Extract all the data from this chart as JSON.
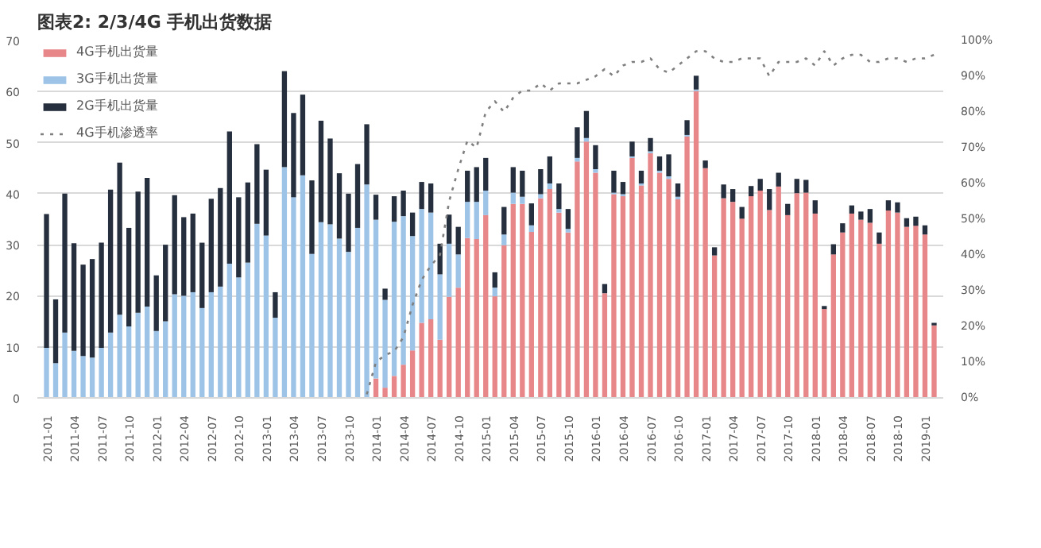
{
  "chart_data": {
    "type": "bar",
    "title": "图表2:  2/3/4G 手机出货数据",
    "stacked": true,
    "grid": "y",
    "legend": "top left",
    "categories": [
      "2011-01",
      null,
      null,
      "2011-04",
      null,
      null,
      "2011-07",
      null,
      null,
      "2011-10",
      null,
      null,
      "2012-01",
      null,
      null,
      "2012-04",
      null,
      null,
      "2012-07",
      null,
      null,
      "2012-10",
      null,
      null,
      "2013-01",
      null,
      null,
      "2013-04",
      null,
      null,
      "2013-07",
      null,
      null,
      "2013-10",
      null,
      null,
      "2014-01",
      null,
      null,
      "2014-04",
      null,
      null,
      "2014-07",
      null,
      null,
      "2014-10",
      null,
      null,
      "2015-01",
      null,
      null,
      "2015-04",
      null,
      null,
      "2015-07",
      null,
      null,
      "2015-10",
      null,
      null,
      "2016-01",
      null,
      null,
      "2016-04",
      null,
      null,
      "2016-07",
      null,
      null,
      "2016-10",
      null,
      null,
      "2017-01",
      null,
      null,
      "2017-04",
      null,
      null,
      "2017-07",
      null,
      null,
      "2017-10",
      null,
      null,
      "2018-01",
      null,
      null,
      "2018-04",
      null,
      null,
      "2018-07",
      null,
      null,
      "2018-10",
      null,
      null,
      "2019-01",
      null
    ],
    "ylim": [
      0,
      70
    ],
    "yticks": [
      0,
      10,
      20,
      30,
      40,
      50,
      60,
      70
    ],
    "y2lim": [
      0,
      100
    ],
    "y2ticks": [
      {
        "value": 0,
        "label": "0%"
      },
      {
        "value": 10,
        "label": "10%"
      },
      {
        "value": 20,
        "label": "20%"
      },
      {
        "value": 30,
        "label": "30%"
      },
      {
        "value": 40,
        "label": "40%"
      },
      {
        "value": 50,
        "label": "50%"
      },
      {
        "value": 60,
        "label": "60%"
      },
      {
        "value": 70,
        "label": "70%"
      },
      {
        "value": 80,
        "label": "80%"
      },
      {
        "value": 90,
        "label": "90%"
      },
      {
        "value": 100,
        "label": "100%"
      }
    ],
    "series": [
      {
        "name": "4G手机出货量",
        "color": "#e8878a",
        "values": [
          null,
          null,
          null,
          null,
          null,
          null,
          null,
          null,
          null,
          null,
          null,
          null,
          null,
          null,
          null,
          null,
          null,
          null,
          null,
          null,
          null,
          null,
          null,
          null,
          null,
          null,
          null,
          null,
          null,
          null,
          null,
          null,
          null,
          null,
          null,
          null,
          3.8,
          2.0,
          4.3,
          6.5,
          9.3,
          14.7,
          15.4,
          11.4,
          19.8,
          21.6,
          31.3,
          31.1,
          35.8,
          19.9,
          29.9,
          38.0,
          38.0,
          32.5,
          39.1,
          40.9,
          36.3,
          32.4,
          46.3,
          50.2,
          44.1,
          20.5,
          39.9,
          39.5,
          47.0,
          41.6,
          47.9,
          44.1,
          42.9,
          38.9,
          51.2,
          60.1,
          45.0,
          27.9,
          39.1,
          38.4,
          35.1,
          39.5,
          40.6,
          36.8,
          41.4,
          35.8,
          40.1,
          40.2,
          36.1,
          17.4,
          28.1,
          32.4,
          36.1,
          34.9,
          34.3,
          30.2,
          36.7,
          36.3,
          33.5,
          33.7,
          32.0,
          14.2
        ]
      },
      {
        "name": "3G手机出货量",
        "color": "#9dc3e6",
        "values": [
          9.8,
          6.8,
          12.8,
          9.2,
          8.2,
          7.9,
          9.8,
          12.8,
          16.3,
          14.0,
          16.7,
          17.9,
          13.1,
          15.0,
          20.3,
          20.0,
          20.7,
          17.6,
          20.7,
          21.8,
          26.3,
          23.6,
          26.5,
          34.1,
          31.8,
          15.7,
          45.2,
          39.3,
          43.6,
          28.2,
          34.4,
          34.0,
          31.2,
          28.6,
          33.3,
          41.8,
          31.1,
          17.2,
          30.2,
          29.1,
          22.4,
          22.3,
          20.9,
          12.8,
          10.4,
          6.5,
          7.1,
          7.3,
          4.8,
          1.7,
          2.1,
          2.2,
          1.4,
          1.3,
          0.8,
          1.1,
          0.7,
          0.7,
          0.7,
          0.7,
          0.7,
          null,
          0.3,
          0.4,
          0.3,
          0.4,
          0.4,
          0.4,
          0.5,
          0.5,
          0.3,
          0.3,
          null,
          null,
          null,
          null,
          null,
          null,
          null,
          null,
          null,
          null,
          null,
          null,
          null,
          null,
          null,
          null,
          null,
          null,
          null,
          null,
          null,
          null,
          null,
          null,
          null,
          null
        ]
      },
      {
        "name": "2G手机出货量",
        "color": "#262f3d",
        "values": [
          26.2,
          12.5,
          27.2,
          21.1,
          17.9,
          19.3,
          20.6,
          28.0,
          29.8,
          19.3,
          23.7,
          25.2,
          10.9,
          15.0,
          19.4,
          15.4,
          15.4,
          12.8,
          18.3,
          19.3,
          25.9,
          15.7,
          15.7,
          15.6,
          12.9,
          5.0,
          18.8,
          16.5,
          15.8,
          14.4,
          19.9,
          16.8,
          12.8,
          11.4,
          12.5,
          11.8,
          4.9,
          2.2,
          5.0,
          5.0,
          4.6,
          5.3,
          5.7,
          6.0,
          5.7,
          5.4,
          6.1,
          6.8,
          6.4,
          3.0,
          5.4,
          5.0,
          5.1,
          4.3,
          4.9,
          5.3,
          5.0,
          3.9,
          6.0,
          5.3,
          4.7,
          1.8,
          4.3,
          2.4,
          2.9,
          2.5,
          2.6,
          2.8,
          4.3,
          2.6,
          2.9,
          2.7,
          1.5,
          1.6,
          2.7,
          2.5,
          2.3,
          2.0,
          2.3,
          4.1,
          2.7,
          2.2,
          2.8,
          2.5,
          2.6,
          0.6,
          2.0,
          1.8,
          1.6,
          1.6,
          2.7,
          2.2,
          2.0,
          2.0,
          1.7,
          1.8,
          1.8,
          0.5
        ]
      },
      {
        "name": "4G手机渗透率",
        "type": "line",
        "axis": "y2",
        "line_style": "dotted",
        "color": "#7f7f7f",
        "values": [
          null,
          null,
          null,
          null,
          null,
          null,
          null,
          null,
          null,
          null,
          null,
          null,
          null,
          null,
          null,
          null,
          null,
          null,
          null,
          null,
          null,
          null,
          null,
          null,
          null,
          null,
          null,
          null,
          null,
          null,
          null,
          null,
          null,
          null,
          null,
          1,
          10,
          12,
          13,
          17,
          26,
          33,
          37,
          40,
          55,
          64,
          72,
          70,
          80,
          83,
          80,
          84,
          86,
          86,
          88,
          86,
          88,
          88,
          88,
          89,
          90,
          92,
          90,
          93,
          94,
          94,
          95,
          92,
          91,
          93,
          95,
          97,
          97,
          95,
          94,
          94,
          95,
          95,
          95,
          90,
          94,
          94,
          94,
          95,
          93,
          97,
          93,
          95,
          96,
          96,
          94,
          94,
          95,
          95,
          94,
          95,
          95,
          96
        ]
      }
    ]
  }
}
